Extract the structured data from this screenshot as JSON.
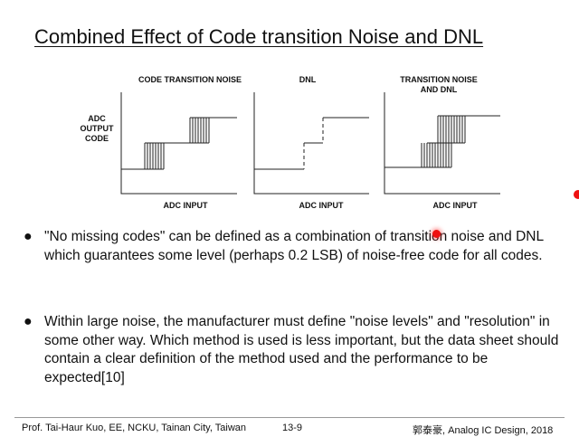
{
  "slide": {
    "title": "Combined Effect of Code transition Noise and DNL"
  },
  "figure": {
    "panel1_title": "CODE TRANSITION NOISE",
    "panel2_title": "DNL",
    "panel3_title": "TRANSITION NOISE\nAND DNL",
    "y_label": "ADC\nOUTPUT\nCODE",
    "x_label_1": "ADC INPUT",
    "x_label_2": "ADC INPUT",
    "x_label_3": "ADC INPUT"
  },
  "bullets": [
    {
      "text": "\"No missing codes\" can be defined as a combination of transition noise and DNL which guarantees some level (perhaps 0.2 LSB) of noise-free code for all codes."
    },
    {
      "text": "Within large noise, the manufacturer must define \"noise levels\" and \"resolution\" in some other way. Which method is used is less important, but the data sheet should contain a clear definition of the method used and the performance to be expected[10]"
    }
  ],
  "footer": {
    "left": "Prof. Tai-Haur Kuo, EE, NCKU, Tainan City, Taiwan",
    "page": "13-9",
    "right": "郭泰豪, Analog IC Design, 2018"
  },
  "colors": {
    "text": "#111111",
    "laser_pointer": "#ee1111"
  }
}
